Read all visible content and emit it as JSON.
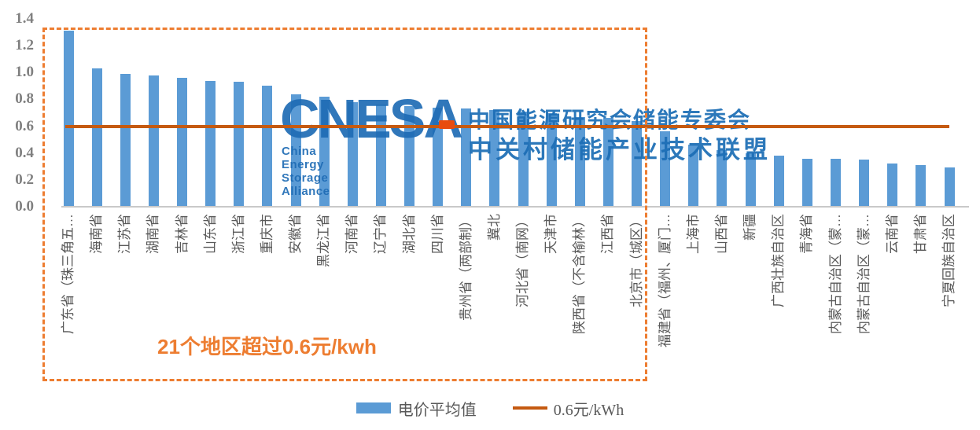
{
  "chart_data": {
    "type": "bar",
    "title": "",
    "xlabel": "",
    "ylabel": "",
    "ylim": [
      0,
      1.4
    ],
    "ytick_labels": [
      "0.0",
      "0.2",
      "0.4",
      "0.6",
      "0.8",
      "1.0",
      "1.2",
      "1.4"
    ],
    "grid": false,
    "legend_position": "bottom",
    "bar_color": "#5B9BD5",
    "axis_label_color": "#808080",
    "category_label_color": "#595959",
    "categories": [
      "广东省（珠三角五…",
      "海南省",
      "江苏省",
      "湖南省",
      "吉林省",
      "山东省",
      "浙江省",
      "重庆市",
      "安徽省",
      "黑龙江省",
      "河南省",
      "辽宁省",
      "湖北省",
      "四川省",
      "贵州省（两部制）",
      "冀北",
      "河北省（南网）",
      "天津市",
      "陕西省（不含榆林）",
      "江西省",
      "北京市（城区）",
      "福建省（福州、厦门…",
      "上海市",
      "山西省",
      "新疆",
      "广西壮族自治区",
      "青海省",
      "内蒙古自治区（蒙…",
      "内蒙古自治区（蒙…",
      "云南省",
      "甘肃省",
      "宁夏回族自治区"
    ],
    "series": [
      {
        "name": "电价平均值",
        "values": [
          1.31,
          1.03,
          0.99,
          0.98,
          0.96,
          0.94,
          0.93,
          0.9,
          0.84,
          0.82,
          0.78,
          0.76,
          0.75,
          0.74,
          0.73,
          0.72,
          0.71,
          0.7,
          0.67,
          0.66,
          0.64,
          0.56,
          0.46,
          0.42,
          0.4,
          0.38,
          0.36,
          0.36,
          0.35,
          0.32,
          0.31,
          0.29
        ]
      }
    ],
    "reference_line": {
      "label": "0.6元/kWh",
      "value": 0.6,
      "color": "#C55A11"
    },
    "annotation": {
      "text": "21个地区超过0.6元/kwh",
      "color": "#ED7D31"
    },
    "highlight_box": {
      "category_count": 21,
      "color": "#ED7D31",
      "note": "dashed box around the 21 regions above 0.6"
    }
  },
  "legend": {
    "bar_label": "电价平均值",
    "line_label": "0.6元/kWh"
  },
  "watermark": {
    "logo_text": "CNESA",
    "logo_subtext": "China Energy Storage Alliance",
    "line1": "中国能源研究会储能专委会",
    "line2": "中关村储能产业技术联盟",
    "color": "#1F6CB5"
  }
}
